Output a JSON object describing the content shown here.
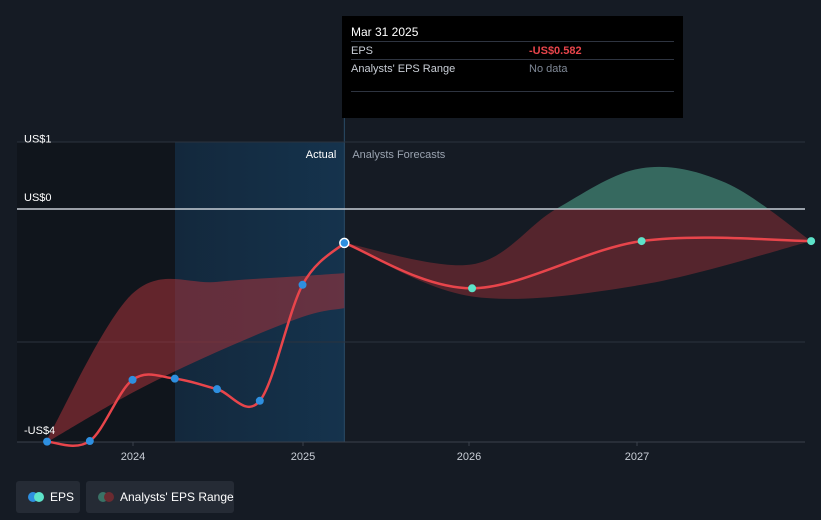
{
  "chart_data": {
    "type": "line",
    "y_axis": {
      "ticks": [
        {
          "value": 1,
          "label": "US$1"
        },
        {
          "value": 0,
          "label": "US$0"
        },
        {
          "value": -4,
          "label": "-US$4"
        }
      ],
      "ylim": [
        -4,
        1
      ]
    },
    "x_axis": {
      "ticks": [
        "2024",
        "2025",
        "2026",
        "2027"
      ]
    },
    "sections": {
      "actual_label": "Actual",
      "forecast_label": "Analysts Forecasts"
    },
    "series": [
      {
        "name": "EPS",
        "kind": "actual",
        "points": [
          {
            "x": "2023-06-30",
            "y": -3.99
          },
          {
            "x": "2023-09-30",
            "y": -3.98
          },
          {
            "x": "2023-12-31",
            "y": -2.93
          },
          {
            "x": "2024-03-31",
            "y": -2.91
          },
          {
            "x": "2024-06-30",
            "y": -3.09
          },
          {
            "x": "2024-09-30",
            "y": -3.29
          },
          {
            "x": "2024-12-31",
            "y": -1.3
          },
          {
            "x": "2025-03-31",
            "y": -0.582
          }
        ]
      },
      {
        "name": "EPS",
        "kind": "forecast",
        "points": [
          {
            "x": "2025-03-31",
            "y": -0.582
          },
          {
            "x": "2025-12-31",
            "y": -1.36
          },
          {
            "x": "2026-12-31",
            "y": -0.55
          },
          {
            "x": "2027-12-31",
            "y": -0.55
          }
        ]
      },
      {
        "name": "Analysts' EPS Range",
        "kind": "range",
        "upper": [
          {
            "x": "2023-06-30",
            "y": -3.95
          },
          {
            "x": "2023-12-31",
            "y": -1.45
          },
          {
            "x": "2024-06-30",
            "y": -1.25
          },
          {
            "x": "2024-12-31",
            "y": -1.15
          },
          {
            "x": "2025-03-31",
            "y": -1.1
          }
        ],
        "lower": [
          {
            "x": "2023-06-30",
            "y": -4.0
          },
          {
            "x": "2023-12-31",
            "y": -3.15
          },
          {
            "x": "2024-06-30",
            "y": -2.45
          },
          {
            "x": "2024-12-31",
            "y": -1.85
          },
          {
            "x": "2025-03-31",
            "y": -1.7
          }
        ]
      },
      {
        "name": "Analysts' EPS Range",
        "kind": "forecast-range",
        "upper": [
          {
            "x": "2025-03-31",
            "y": -0.582
          },
          {
            "x": "2025-12-31",
            "y": -0.95
          },
          {
            "x": "2026-06-30",
            "y": 0.0
          },
          {
            "x": "2026-12-31",
            "y": 0.7
          },
          {
            "x": "2027-06-30",
            "y": 0.45
          },
          {
            "x": "2027-12-31",
            "y": -0.55
          }
        ],
        "lower": [
          {
            "x": "2025-03-31",
            "y": -0.582
          },
          {
            "x": "2025-12-31",
            "y": -1.5
          },
          {
            "x": "2026-12-31",
            "y": -1.3
          },
          {
            "x": "2027-12-31",
            "y": -0.55
          }
        ]
      }
    ],
    "colors": {
      "eps_line": "#e8454b",
      "actual_marker": "#2e8fe0",
      "forecast_marker": "#5de3c9",
      "range_up": "#3a7266",
      "range_down": "#6b2a30",
      "highlight": "#13324a"
    }
  },
  "tooltip": {
    "date": "Mar 31 2025",
    "rows": [
      {
        "key": "EPS",
        "value": "-US$0.582"
      },
      {
        "key": "Analysts' EPS Range",
        "value": "No data"
      }
    ]
  },
  "legend": [
    {
      "label": "EPS",
      "colors": [
        "#2e8fe0",
        "#5de3c9"
      ]
    },
    {
      "label": "Analysts' EPS Range",
      "colors": [
        "#3a7266",
        "#6b2a30"
      ]
    }
  ]
}
